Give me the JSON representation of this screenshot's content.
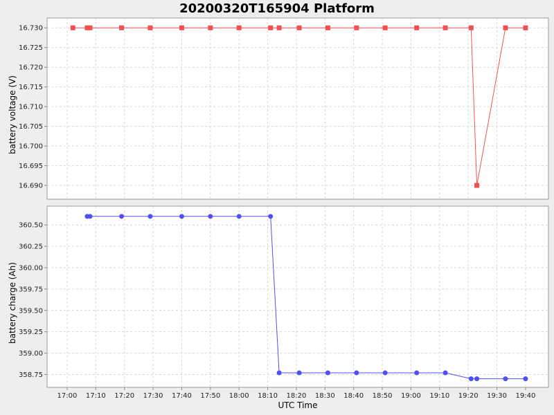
{
  "chart_data": {
    "title": "20200320T165904 Platform",
    "xlabel": "UTC Time",
    "x_ticks": [
      "17:00",
      "17:10",
      "17:20",
      "17:30",
      "17:40",
      "17:50",
      "18:00",
      "18:10",
      "18:20",
      "18:30",
      "18:40",
      "18:50",
      "19:00",
      "19:10",
      "19:20",
      "19:30",
      "19:40"
    ],
    "xlim": [
      "16:53",
      "19:48"
    ],
    "grid": true,
    "subplots": [
      {
        "type": "line",
        "ylabel": "battery voltage (V)",
        "color": "#f05050",
        "marker": "square",
        "ylim": [
          16.6865,
          16.7325
        ],
        "y_ticks": [
          "16.730",
          "16.725",
          "16.720",
          "16.715",
          "16.710",
          "16.705",
          "16.700",
          "16.695",
          "16.690"
        ],
        "x": [
          "17:02",
          "17:07",
          "17:08",
          "17:19",
          "17:29",
          "17:40",
          "17:50",
          "18:00",
          "18:11",
          "18:14",
          "18:21",
          "18:31",
          "18:41",
          "18:51",
          "19:02",
          "19:12",
          "19:21",
          "19:23",
          "19:33",
          "19:40"
        ],
        "y": [
          16.73,
          16.73,
          16.73,
          16.73,
          16.73,
          16.73,
          16.73,
          16.73,
          16.73,
          16.73,
          16.73,
          16.73,
          16.73,
          16.73,
          16.73,
          16.73,
          16.73,
          16.69,
          16.73,
          16.73
        ]
      },
      {
        "type": "line",
        "ylabel": "battery charge (Ah)",
        "color": "#5050f0",
        "marker": "circle",
        "ylim": [
          358.6,
          360.72
        ],
        "y_ticks": [
          "360.50",
          "360.25",
          "360.00",
          "359.75",
          "359.50",
          "359.25",
          "359.00",
          "358.75"
        ],
        "x": [
          "17:07",
          "17:08",
          "17:19",
          "17:29",
          "17:40",
          "17:50",
          "18:00",
          "18:11",
          "18:14",
          "18:21",
          "18:31",
          "18:41",
          "18:51",
          "19:02",
          "19:12",
          "19:21",
          "19:23",
          "19:33",
          "19:40"
        ],
        "y": [
          360.6,
          360.6,
          360.6,
          360.6,
          360.6,
          360.6,
          360.6,
          360.6,
          358.77,
          358.77,
          358.77,
          358.77,
          358.77,
          358.77,
          358.77,
          358.7,
          358.7,
          358.7,
          358.7
        ]
      }
    ]
  }
}
